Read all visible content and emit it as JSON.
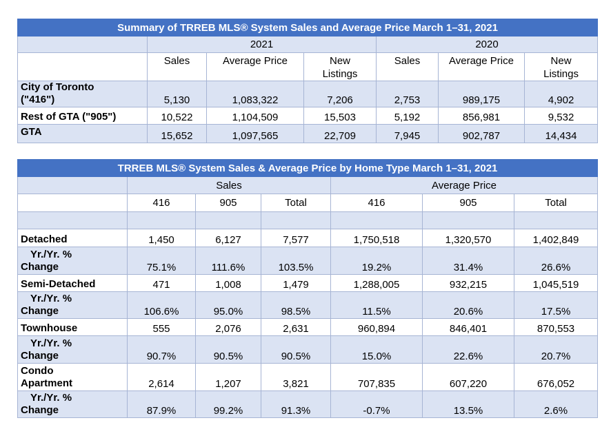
{
  "summary": {
    "title": "Summary of TRREB MLS® System Sales and Average Price March 1–31, 2021",
    "year_2021": "2021",
    "year_2020": "2020",
    "col_sales": "Sales",
    "col_avg_price": "Average Price",
    "col_new_listings": "New Listings",
    "col_new_listings_l1": "New",
    "col_new_listings_l2": "Listings",
    "rows": [
      {
        "label": "City of Toronto (\"416\")",
        "label_l1": "City of Toronto",
        "label_l2": "(\"416\")",
        "values": [
          "5,130",
          "1,083,322",
          "7,206",
          "2,753",
          "989,175",
          "4,902"
        ]
      },
      {
        "label": "Rest of GTA (\"905\")",
        "values": [
          "10,522",
          "1,104,509",
          "15,503",
          "5,192",
          "856,981",
          "9,532"
        ]
      },
      {
        "label": "GTA",
        "values": [
          "15,652",
          "1,097,565",
          "22,709",
          "7,945",
          "902,787",
          "14,434"
        ]
      }
    ]
  },
  "by_type": {
    "title": "TRREB MLS® System Sales & Average Price by Home Type March 1–31, 2021",
    "group_sales": "Sales",
    "group_avg_price": "Average Price",
    "cols": [
      "416",
      "905",
      "Total",
      "416",
      "905",
      "Total"
    ],
    "change_label_l1": "Yr./Yr. %",
    "change_label_l2": "Change",
    "rows": [
      {
        "label": "Detached",
        "values": [
          "1,450",
          "6,127",
          "7,577",
          "1,750,518",
          "1,320,570",
          "1,402,849"
        ],
        "change": [
          "75.1%",
          "111.6%",
          "103.5%",
          "19.2%",
          "31.4%",
          "26.6%"
        ]
      },
      {
        "label": "Semi-Detached",
        "values": [
          "471",
          "1,008",
          "1,479",
          "1,288,005",
          "932,215",
          "1,045,519"
        ],
        "change": [
          "106.6%",
          "95.0%",
          "98.5%",
          "11.5%",
          "20.6%",
          "17.5%"
        ]
      },
      {
        "label": "Townhouse",
        "values": [
          "555",
          "2,076",
          "2,631",
          "960,894",
          "846,401",
          "870,553"
        ],
        "change": [
          "90.7%",
          "90.5%",
          "90.5%",
          "15.0%",
          "22.6%",
          "20.7%"
        ]
      },
      {
        "label": "Condo Apartment",
        "label_l1": "Condo",
        "label_l2": "Apartment",
        "values": [
          "2,614",
          "1,207",
          "3,821",
          "707,835",
          "607,220",
          "676,052"
        ],
        "change": [
          "87.9%",
          "99.2%",
          "91.3%",
          "-0.7%",
          "13.5%",
          "2.6%"
        ]
      }
    ]
  }
}
